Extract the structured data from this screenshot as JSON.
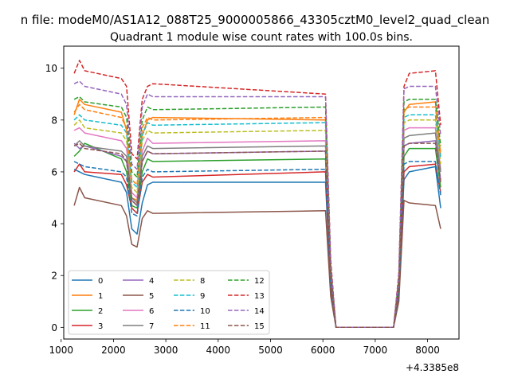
{
  "figure": {
    "suptitle": "n file: modeM0/AS1A12_088T25_9000005866_43305cztM0_level2_quad_clean",
    "title": "Quadrant 1 module wise count rates with 100.0s bins.",
    "offset_label": "+4.3385e8"
  },
  "chart_data": {
    "type": "line",
    "title": "Quadrant 1 module wise count rates with 100.0s bins.",
    "x_offset": 433850000,
    "xlim": [
      1050,
      8600
    ],
    "ylim": [
      -0.45,
      10.85
    ],
    "xticks": [
      1000,
      2000,
      3000,
      4000,
      5000,
      6000,
      7000,
      8000
    ],
    "xtick_labels": [
      "1000",
      "2000",
      "3000",
      "4000",
      "5000",
      "6000",
      "7000",
      "8000"
    ],
    "yticks": [
      0,
      2,
      4,
      6,
      8,
      10
    ],
    "ytick_labels": [
      "0",
      "2",
      "4",
      "6",
      "8",
      "10"
    ],
    "grid": false,
    "legend": {
      "placement": "lower-left",
      "ncol": 4
    },
    "colors": [
      "#1f77b4",
      "#ff7f0e",
      "#2ca02c",
      "#d62728",
      "#9467bd",
      "#8c564b",
      "#e377c2",
      "#7f7f7f",
      "#bcbd22",
      "#17becf"
    ],
    "line_styles": [
      "solid",
      "solid",
      "solid",
      "solid",
      "solid",
      "solid",
      "solid",
      "solid",
      "dashed",
      "dashed",
      "dashed",
      "dashed",
      "dashed",
      "dashed",
      "dashed",
      "dashed"
    ],
    "series_names": [
      "0",
      "1",
      "2",
      "3",
      "4",
      "5",
      "6",
      "7",
      "8",
      "9",
      "10",
      "11",
      "12",
      "13",
      "14",
      "15"
    ],
    "segments": {
      "x": [
        1250,
        1350,
        1450,
        2150,
        2250,
        2350,
        2450,
        2550,
        2650,
        2750,
        6050,
        6150,
        6250,
        7350,
        7450,
        7550,
        7650,
        8150,
        8250
      ],
      "series": [
        {
          "name": "0",
          "values": [
            6.1,
            6.0,
            5.9,
            5.6,
            5.2,
            3.8,
            3.6,
            4.8,
            5.5,
            5.6,
            5.6,
            1.5,
            0.0,
            0.0,
            1.3,
            5.7,
            6.0,
            6.2,
            4.6
          ]
        },
        {
          "name": "1",
          "values": [
            8.2,
            8.8,
            8.6,
            8.3,
            7.6,
            5.0,
            4.9,
            7.4,
            8.0,
            8.1,
            8.0,
            2.2,
            0.0,
            0.0,
            1.8,
            8.3,
            8.6,
            8.7,
            6.6
          ]
        },
        {
          "name": "2",
          "values": [
            6.6,
            6.8,
            7.1,
            6.5,
            6.0,
            4.7,
            4.6,
            6.0,
            6.5,
            6.4,
            6.5,
            1.8,
            0.0,
            0.0,
            1.5,
            6.6,
            6.9,
            6.9,
            5.4
          ]
        },
        {
          "name": "3",
          "values": [
            6.0,
            6.3,
            6.0,
            5.9,
            5.5,
            4.6,
            4.4,
            5.6,
            5.9,
            5.8,
            6.0,
            1.7,
            0.0,
            0.0,
            1.4,
            6.0,
            6.2,
            6.3,
            5.2
          ]
        },
        {
          "name": "4",
          "values": [
            7.1,
            6.9,
            7.0,
            6.6,
            6.4,
            4.9,
            4.7,
            6.4,
            6.8,
            6.7,
            6.8,
            1.9,
            0.0,
            0.0,
            1.6,
            7.0,
            7.1,
            7.2,
            5.7
          ]
        },
        {
          "name": "5",
          "values": [
            4.7,
            5.4,
            5.0,
            4.7,
            4.3,
            3.2,
            3.1,
            4.2,
            4.5,
            4.4,
            4.5,
            1.2,
            0.0,
            0.0,
            1.0,
            4.9,
            4.8,
            4.7,
            3.8
          ]
        },
        {
          "name": "6",
          "values": [
            7.6,
            7.7,
            7.5,
            7.2,
            6.9,
            5.2,
            5.0,
            6.8,
            7.3,
            7.1,
            7.2,
            2.0,
            0.0,
            0.0,
            1.7,
            7.6,
            7.7,
            7.7,
            6.1
          ]
        },
        {
          "name": "7",
          "values": [
            7.0,
            7.2,
            7.0,
            6.8,
            6.6,
            5.0,
            4.8,
            6.6,
            7.0,
            6.9,
            7.0,
            1.9,
            0.0,
            0.0,
            1.6,
            7.3,
            7.4,
            7.5,
            6.0
          ]
        },
        {
          "name": "8",
          "values": [
            7.8,
            8.0,
            7.7,
            7.5,
            7.2,
            5.4,
            5.2,
            7.2,
            7.6,
            7.5,
            7.6,
            2.1,
            0.0,
            0.0,
            1.7,
            7.9,
            8.0,
            8.0,
            6.3
          ]
        },
        {
          "name": "9",
          "values": [
            8.0,
            8.2,
            8.0,
            7.8,
            7.5,
            5.6,
            5.4,
            7.4,
            7.9,
            7.8,
            7.9,
            2.2,
            0.0,
            0.0,
            1.8,
            8.1,
            8.2,
            8.2,
            6.5
          ]
        },
        {
          "name": "10",
          "values": [
            6.4,
            6.3,
            6.2,
            6.0,
            5.8,
            4.4,
            4.3,
            5.8,
            6.1,
            6.0,
            6.1,
            1.7,
            0.0,
            0.0,
            1.4,
            6.3,
            6.4,
            6.4,
            5.1
          ]
        },
        {
          "name": "11",
          "values": [
            8.3,
            8.6,
            8.4,
            8.1,
            7.7,
            5.7,
            5.5,
            7.7,
            8.1,
            8.0,
            8.1,
            2.2,
            0.0,
            0.0,
            1.8,
            8.4,
            8.5,
            8.5,
            6.7
          ]
        },
        {
          "name": "12",
          "values": [
            8.8,
            8.9,
            8.7,
            8.5,
            8.1,
            6.0,
            5.8,
            8.0,
            8.5,
            8.4,
            8.5,
            2.3,
            0.0,
            0.0,
            1.9,
            8.7,
            8.8,
            8.8,
            7.0
          ]
        },
        {
          "name": "13",
          "values": [
            9.8,
            10.3,
            9.9,
            9.6,
            9.3,
            6.7,
            6.5,
            8.8,
            9.3,
            9.4,
            9.0,
            2.6,
            0.0,
            0.0,
            2.1,
            9.3,
            9.8,
            9.9,
            7.8
          ]
        },
        {
          "name": "14",
          "values": [
            9.4,
            9.5,
            9.3,
            9.0,
            8.6,
            6.3,
            6.1,
            8.5,
            9.0,
            8.9,
            8.9,
            2.4,
            0.0,
            0.0,
            2.0,
            9.2,
            9.3,
            9.3,
            7.4
          ]
        },
        {
          "name": "15",
          "values": [
            7.0,
            7.1,
            6.9,
            6.7,
            6.4,
            4.9,
            4.7,
            6.4,
            6.8,
            6.7,
            6.8,
            1.9,
            0.0,
            0.0,
            1.6,
            7.0,
            7.1,
            7.1,
            5.6
          ]
        }
      ]
    }
  }
}
